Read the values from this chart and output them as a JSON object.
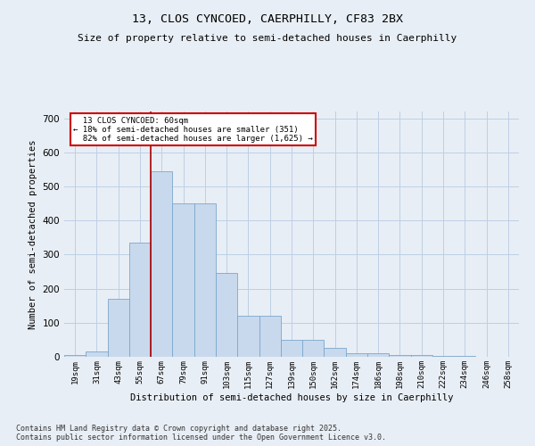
{
  "title1": "13, CLOS CYNCOED, CAERPHILLY, CF83 2BX",
  "title2": "Size of property relative to semi-detached houses in Caerphilly",
  "xlabel": "Distribution of semi-detached houses by size in Caerphilly",
  "ylabel": "Number of semi-detached properties",
  "categories": [
    "19sqm",
    "31sqm",
    "43sqm",
    "55sqm",
    "67sqm",
    "79sqm",
    "91sqm",
    "103sqm",
    "115sqm",
    "127sqm",
    "139sqm",
    "150sqm",
    "162sqm",
    "174sqm",
    "186sqm",
    "198sqm",
    "210sqm",
    "222sqm",
    "234sqm",
    "246sqm",
    "258sqm"
  ],
  "values": [
    5,
    15,
    170,
    335,
    545,
    450,
    450,
    245,
    120,
    120,
    50,
    50,
    25,
    10,
    10,
    5,
    5,
    2,
    2,
    1,
    1
  ],
  "bar_color": "#c8d9ed",
  "bar_edge_color": "#7ba7cc",
  "property_size": "60sqm",
  "pct_smaller": 18,
  "pct_larger": 82,
  "n_smaller": 351,
  "n_larger": 1625,
  "annotation_box_color": "#ffffff",
  "annotation_box_edge": "#cc0000",
  "vline_color": "#aa0000",
  "grid_color": "#bdd0e5",
  "bg_color": "#e8eef5",
  "footer_text": "Contains HM Land Registry data © Crown copyright and database right 2025.\nContains public sector information licensed under the Open Government Licence v3.0.",
  "ylim": [
    0,
    720
  ],
  "yticks": [
    0,
    100,
    200,
    300,
    400,
    500,
    600,
    700
  ],
  "vline_index": 4
}
